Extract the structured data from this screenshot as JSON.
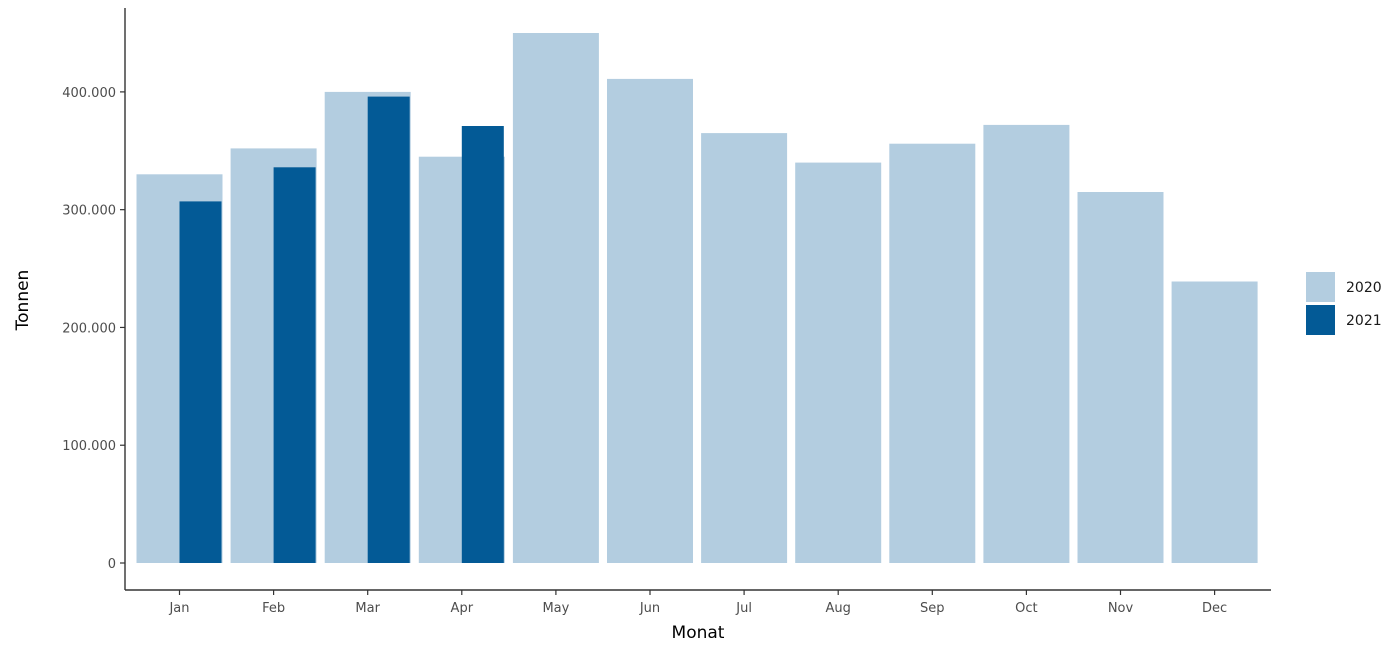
{
  "chart_data": {
    "type": "bar",
    "title": "",
    "xlabel": "Monat",
    "ylabel": "Tonnen",
    "categories": [
      "Jan",
      "Feb",
      "Mar",
      "Apr",
      "May",
      "Jun",
      "Jul",
      "Aug",
      "Sep",
      "Oct",
      "Nov",
      "Dec"
    ],
    "series": [
      {
        "name": "2020",
        "color": "#b3cde0",
        "values": [
          330000,
          352000,
          400000,
          345000,
          450000,
          411000,
          365000,
          340000,
          356000,
          372000,
          315000,
          239000
        ]
      },
      {
        "name": "2021",
        "color": "#035a96",
        "values": [
          307000,
          336000,
          396000,
          371000,
          null,
          null,
          null,
          null,
          null,
          null,
          null,
          null
        ]
      }
    ],
    "ylim": [
      0,
      470000
    ],
    "yticks": [
      0,
      100000,
      200000,
      300000,
      400000
    ],
    "ytick_labels": [
      "0",
      "100.000",
      "200.000",
      "300.000",
      "400.000"
    ],
    "grid": false,
    "legend_position": "right",
    "bar_style": "overlapping-dodge"
  }
}
